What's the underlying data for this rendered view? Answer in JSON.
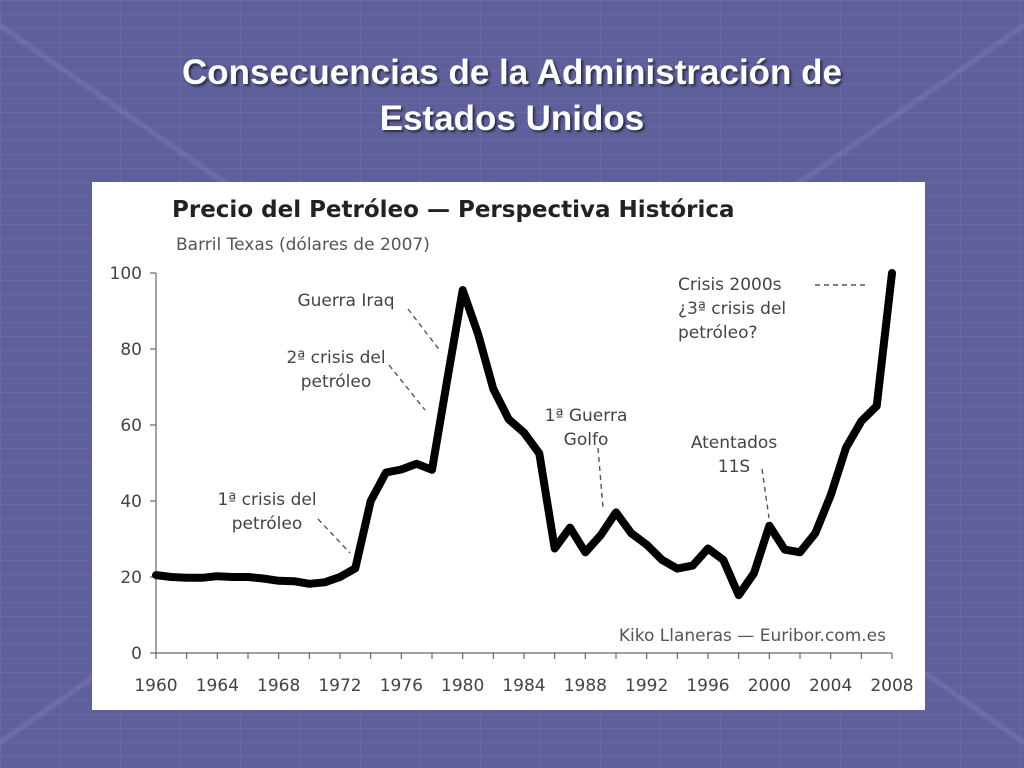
{
  "slide": {
    "title_line1": "Consecuencias de la Administración de",
    "title_line2": "Estados Unidos"
  },
  "chart_data": {
    "type": "line",
    "title": "Precio del Petróleo — Perspectiva Histórica",
    "subtitle": "Barril Texas (dólares de 2007)",
    "source": "Kiko Llaneras — Euribor.com.es",
    "xlabel": "",
    "ylabel": "",
    "xlim": [
      1960,
      2008
    ],
    "ylim": [
      0,
      100
    ],
    "x_ticks": [
      "1960",
      "1964",
      "1968",
      "1972",
      "1976",
      "1980",
      "1984",
      "1988",
      "1992",
      "1996",
      "2000",
      "2004",
      "2008"
    ],
    "y_ticks": [
      "0",
      "20",
      "40",
      "60",
      "80",
      "100"
    ],
    "grid": false,
    "series": [
      {
        "x": [
          1960,
          1961,
          1962,
          1963,
          1964,
          1965,
          1966,
          1967,
          1968,
          1969,
          1970,
          1971,
          1972,
          1973,
          1974,
          1975,
          1976,
          1977,
          1978,
          1979,
          1980,
          1981,
          1982,
          1983,
          1984,
          1985,
          1986,
          1987,
          1988,
          1989,
          1990,
          1991,
          1992,
          1993,
          1994,
          1995,
          1996,
          1997,
          1998,
          1999,
          2000,
          2001,
          2002,
          2003,
          2004,
          2005,
          2006,
          2007,
          2008
        ],
        "y": [
          20.5,
          20,
          19.8,
          19.8,
          20.2,
          20,
          20,
          19.6,
          19,
          18.9,
          18.2,
          18.6,
          20,
          22.3,
          40,
          47.5,
          48.3,
          49.8,
          48.2,
          72,
          95.5,
          84,
          69.5,
          61.5,
          58,
          52.5,
          27.5,
          33,
          26.5,
          31,
          37,
          31.5,
          28.5,
          24.5,
          22.2,
          23,
          27.5,
          24.5,
          15.2,
          21,
          33.5,
          27.2,
          26.5,
          31.5,
          41.5,
          54,
          61,
          65,
          100
        ]
      }
    ],
    "annotations": [
      {
        "text_lines": [
          "1ª crisis del",
          "petróleo"
        ]
      },
      {
        "text_lines": [
          "2ª crisis del",
          "petróleo"
        ]
      },
      {
        "text_lines": [
          "Guerra Iraq"
        ]
      },
      {
        "text_lines": [
          "1ª Guerra",
          "Golfo"
        ]
      },
      {
        "text_lines": [
          "Atentados",
          "11S"
        ]
      },
      {
        "text_lines": [
          "Crisis 2000s",
          "¿3ª crisis del",
          "petróleo?"
        ]
      }
    ],
    "colors": {
      "line": "#000000",
      "axis": "#666666",
      "text": "#444444"
    }
  }
}
